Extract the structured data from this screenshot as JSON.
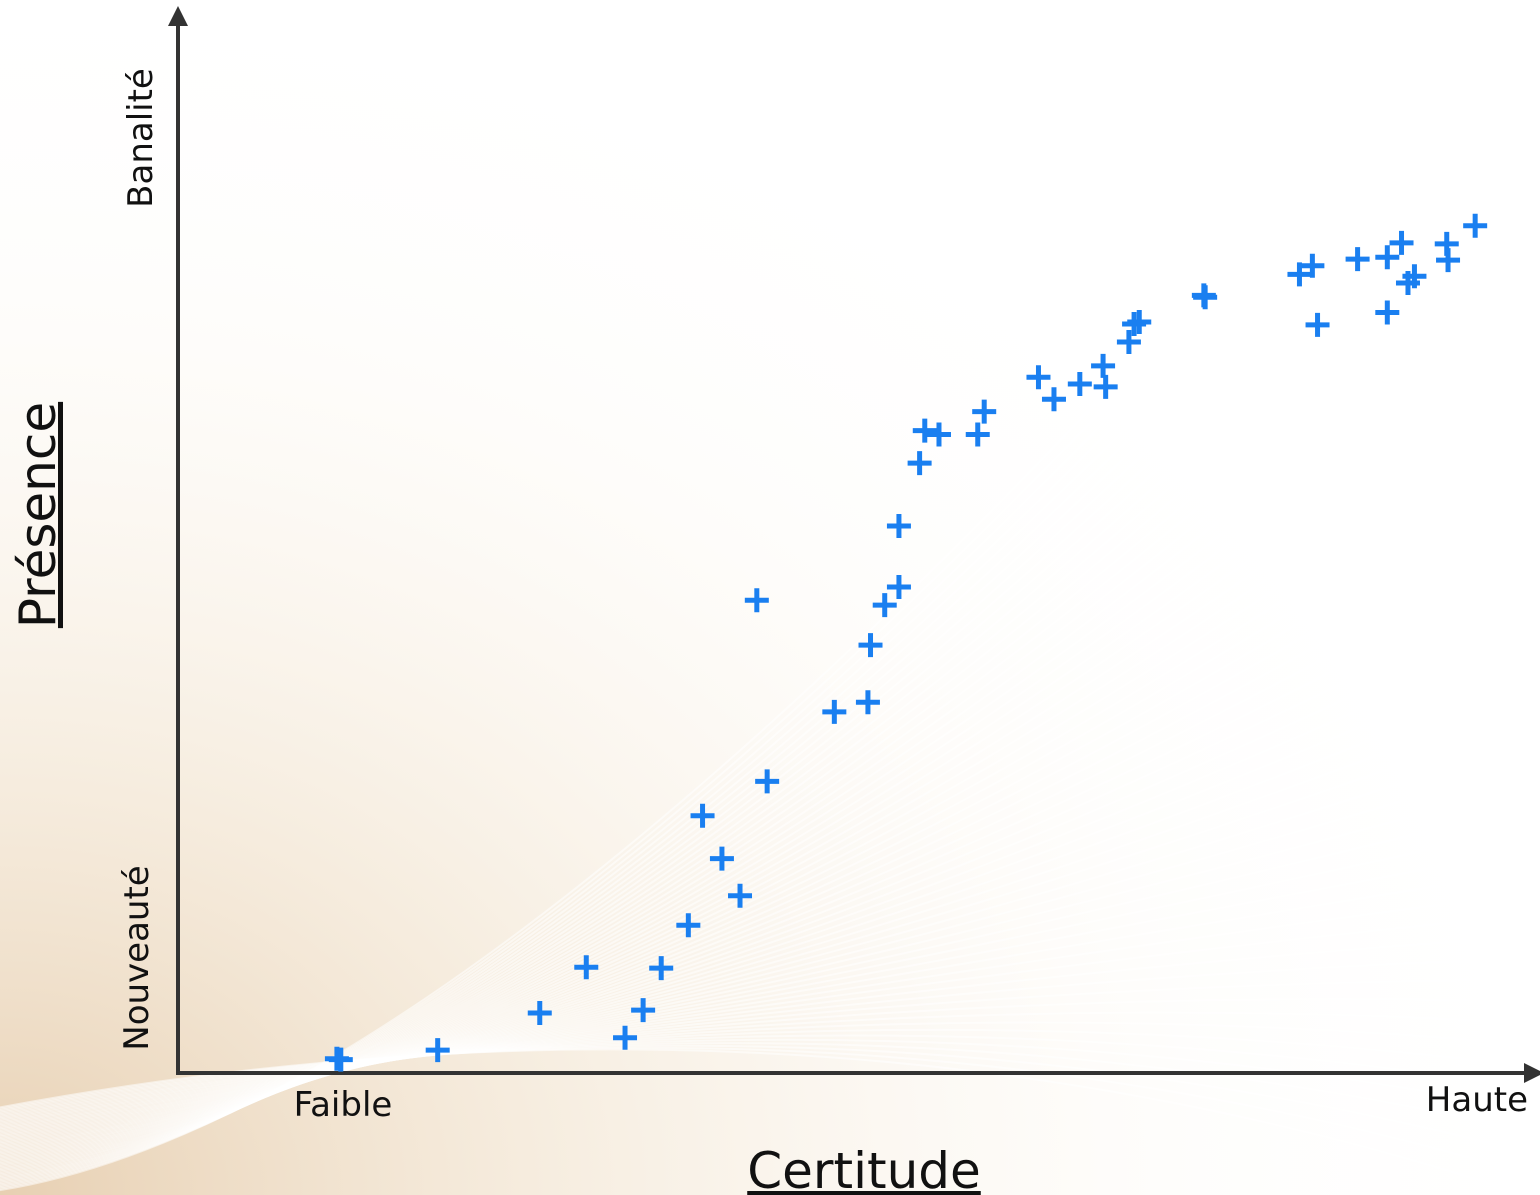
{
  "chart_data": {
    "type": "scatter",
    "xlabel": "Certitude",
    "ylabel": "Présence",
    "x_tick_labels": {
      "low": "Faible",
      "high": "Haute"
    },
    "y_tick_labels": {
      "low": "Nouveauté",
      "high": "Banalité"
    },
    "xlim": [
      0,
      100
    ],
    "ylim": [
      0,
      100
    ],
    "grid": false,
    "legend": "none",
    "marker": "plus",
    "marker_color": "#1a7ff0",
    "axis_color": "#333333",
    "series": [
      {
        "points": [
          {
            "x": 12.3,
            "y": 1.5
          },
          {
            "x": 12.6,
            "y": 1.4
          },
          {
            "x": 20.1,
            "y": 2.4
          },
          {
            "x": 28.0,
            "y": 6.3
          },
          {
            "x": 31.6,
            "y": 11.1
          },
          {
            "x": 34.6,
            "y": 3.7
          },
          {
            "x": 36.0,
            "y": 6.6
          },
          {
            "x": 37.4,
            "y": 11.0
          },
          {
            "x": 39.5,
            "y": 15.5
          },
          {
            "x": 40.6,
            "y": 27.0
          },
          {
            "x": 42.1,
            "y": 22.5
          },
          {
            "x": 43.5,
            "y": 18.6
          },
          {
            "x": 45.6,
            "y": 30.6
          },
          {
            "x": 44.8,
            "y": 49.6
          },
          {
            "x": 50.8,
            "y": 37.9
          },
          {
            "x": 53.4,
            "y": 38.9
          },
          {
            "x": 53.6,
            "y": 44.9
          },
          {
            "x": 54.7,
            "y": 49.1
          },
          {
            "x": 55.8,
            "y": 51.0
          },
          {
            "x": 55.8,
            "y": 57.4
          },
          {
            "x": 57.4,
            "y": 64.0
          },
          {
            "x": 57.8,
            "y": 67.4
          },
          {
            "x": 58.9,
            "y": 67.0
          },
          {
            "x": 61.9,
            "y": 67.0
          },
          {
            "x": 62.4,
            "y": 69.4
          },
          {
            "x": 66.6,
            "y": 73.0
          },
          {
            "x": 67.8,
            "y": 70.7
          },
          {
            "x": 69.8,
            "y": 72.3
          },
          {
            "x": 71.6,
            "y": 74.2
          },
          {
            "x": 71.8,
            "y": 72.0
          },
          {
            "x": 73.6,
            "y": 76.7
          },
          {
            "x": 74.0,
            "y": 78.6
          },
          {
            "x": 74.4,
            "y": 78.8
          },
          {
            "x": 79.5,
            "y": 81.4
          },
          {
            "x": 79.4,
            "y": 81.6
          },
          {
            "x": 86.8,
            "y": 83.8
          },
          {
            "x": 87.8,
            "y": 84.7
          },
          {
            "x": 88.2,
            "y": 78.5
          },
          {
            "x": 91.3,
            "y": 85.4
          },
          {
            "x": 93.6,
            "y": 85.6
          },
          {
            "x": 93.6,
            "y": 79.8
          },
          {
            "x": 94.7,
            "y": 87.1
          },
          {
            "x": 95.2,
            "y": 82.9
          },
          {
            "x": 95.7,
            "y": 83.6
          },
          {
            "x": 98.2,
            "y": 87.0
          },
          {
            "x": 98.3,
            "y": 85.3
          },
          {
            "x": 100.4,
            "y": 88.9
          }
        ]
      }
    ]
  }
}
